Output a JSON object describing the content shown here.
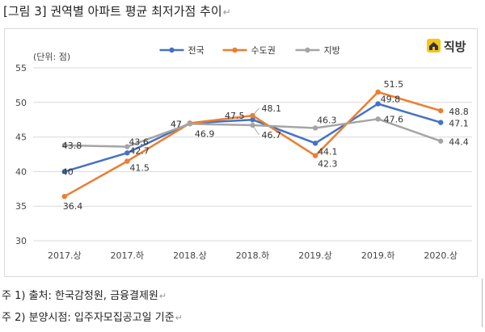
{
  "figure": {
    "title": "[그림 3] 권역별 아파트 평균 최저가점 추이",
    "notes": [
      "주 1) 출처: 한국감정원, 금융결제원",
      "주 2) 분양시점: 입주자모집공고일 기준"
    ],
    "return_mark": "↵"
  },
  "logo": {
    "text": "직방",
    "color": "#333333",
    "icon": "house-logo-icon"
  },
  "colors": {
    "national": "#4472C4",
    "capital": "#ED7D31",
    "local": "#A5A5A5",
    "grid": "#d9d9d9"
  },
  "chart_data": {
    "type": "line",
    "unit_label": "(단위: 점)",
    "categories": [
      "2017.상",
      "2017.하",
      "2018.상",
      "2018.하",
      "2019.상",
      "2019.하",
      "2020.상"
    ],
    "ylim": [
      30,
      55
    ],
    "yticks": [
      30,
      35,
      40,
      45,
      50,
      55
    ],
    "grid": true,
    "legend_position": "top-center",
    "series": [
      {
        "name": "전국",
        "color": "#4472C4",
        "values": [
          40,
          42.7,
          47,
          47.5,
          44.1,
          49.8,
          47.1
        ]
      },
      {
        "name": "수도권",
        "color": "#ED7D31",
        "values": [
          36.4,
          41.5,
          47,
          48.1,
          42.3,
          51.5,
          48.8
        ]
      },
      {
        "name": "지방",
        "color": "#A5A5A5",
        "values": [
          43.8,
          43.6,
          46.9,
          46.7,
          46.3,
          47.6,
          44.4
        ]
      }
    ]
  }
}
